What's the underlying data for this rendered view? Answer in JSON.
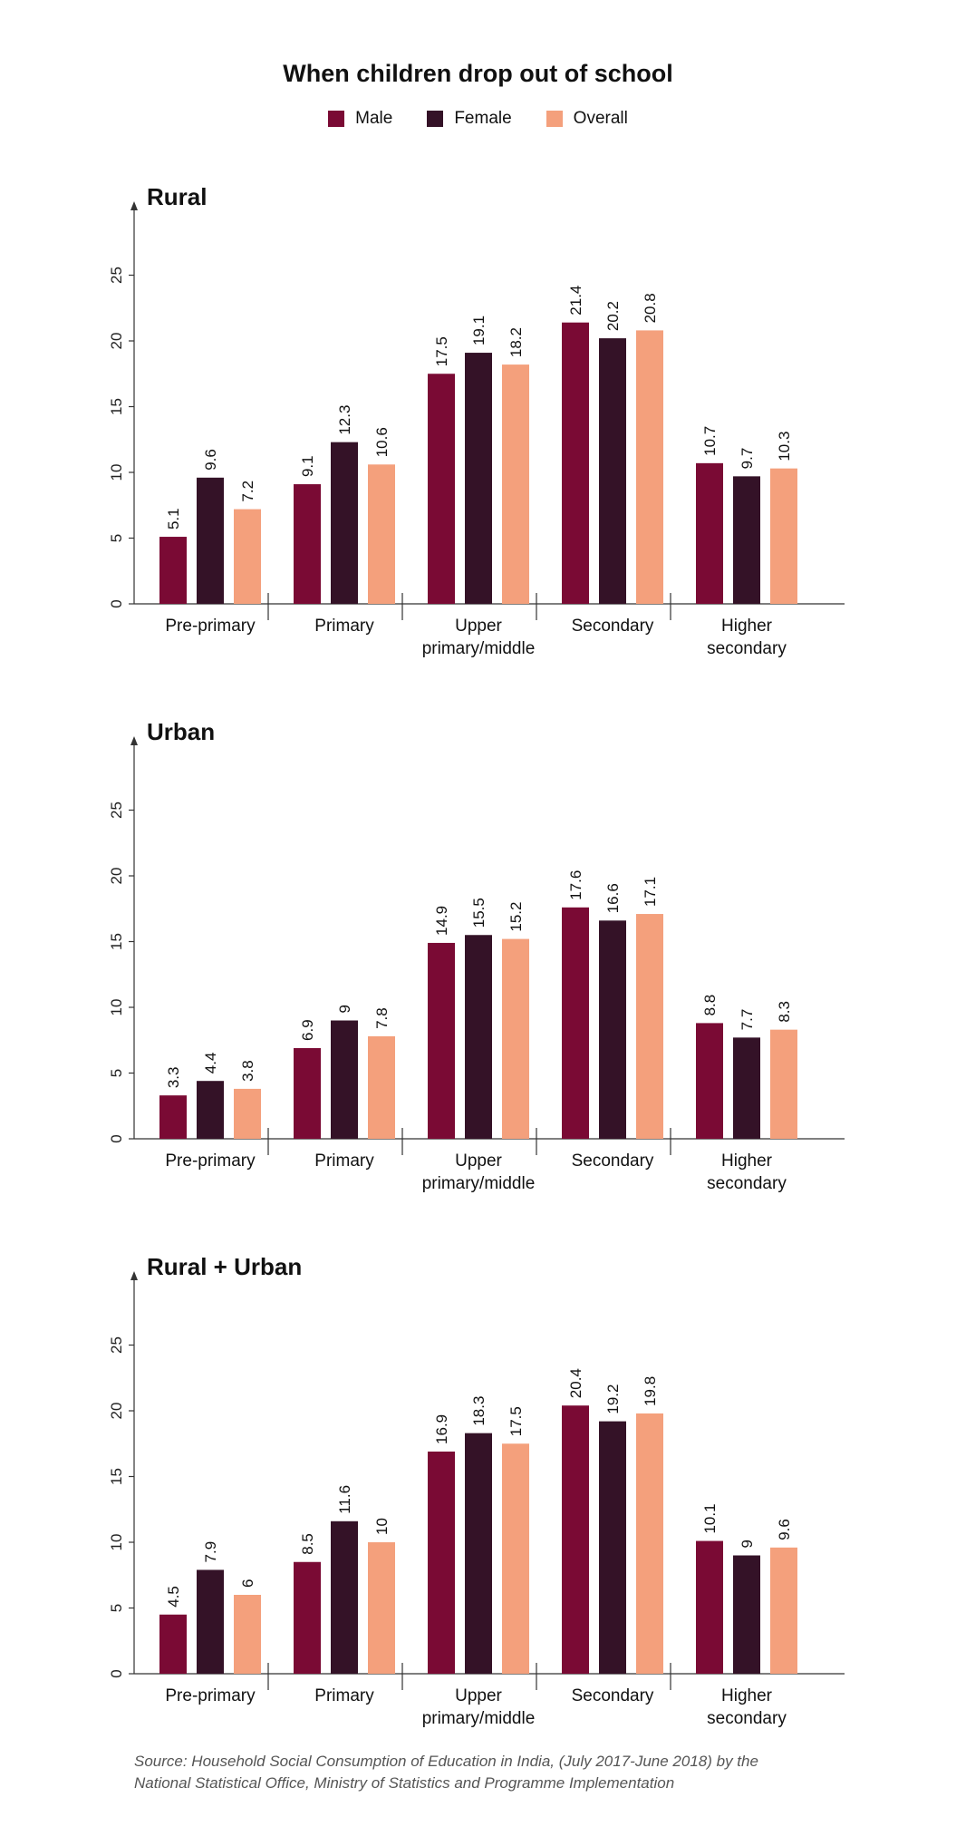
{
  "title": "When children drop out of school",
  "legend": [
    "Male",
    "Female",
    "Overall"
  ],
  "colors": [
    "#7a0a34",
    "#341227",
    "#f4a07c"
  ],
  "chart_data": [
    {
      "type": "bar",
      "title": "Rural",
      "categories": [
        [
          "Pre-primary"
        ],
        [
          "Primary"
        ],
        [
          "Upper",
          "primary/middle"
        ],
        [
          "Secondary"
        ],
        [
          "Higher",
          "secondary"
        ]
      ],
      "yticks": [
        "0",
        "5",
        "10",
        "15",
        "20",
        "25"
      ],
      "ylim": [
        0,
        29
      ],
      "series": [
        {
          "name": "Male",
          "values": [
            5.1,
            9.1,
            17.5,
            21.4,
            10.7
          ]
        },
        {
          "name": "Female",
          "values": [
            9.6,
            12.3,
            19.1,
            20.2,
            9.7
          ]
        },
        {
          "name": "Overall",
          "values": [
            7.2,
            10.6,
            18.2,
            20.8,
            10.3
          ]
        }
      ]
    },
    {
      "type": "bar",
      "title": "Urban",
      "categories": [
        [
          "Pre-primary"
        ],
        [
          "Primary"
        ],
        [
          "Upper",
          "primary/middle"
        ],
        [
          "Secondary"
        ],
        [
          "Higher",
          "secondary"
        ]
      ],
      "yticks": [
        "0",
        "5",
        "10",
        "15",
        "20",
        "25"
      ],
      "ylim": [
        0,
        29
      ],
      "series": [
        {
          "name": "Male",
          "values": [
            3.3,
            6.9,
            14.9,
            17.6,
            8.8
          ]
        },
        {
          "name": "Female",
          "values": [
            4.4,
            9,
            15.5,
            16.6,
            7.7
          ]
        },
        {
          "name": "Overall",
          "values": [
            3.8,
            7.8,
            15.2,
            17.1,
            8.3
          ]
        }
      ]
    },
    {
      "type": "bar",
      "title": "Rural + Urban",
      "categories": [
        [
          "Pre-primary"
        ],
        [
          "Primary"
        ],
        [
          "Upper",
          "primary/middle"
        ],
        [
          "Secondary"
        ],
        [
          "Higher",
          "secondary"
        ]
      ],
      "yticks": [
        "0",
        "5",
        "10",
        "15",
        "20",
        "25"
      ],
      "ylim": [
        0,
        29
      ],
      "series": [
        {
          "name": "Male",
          "values": [
            4.5,
            8.5,
            16.9,
            20.4,
            10.1
          ]
        },
        {
          "name": "Female",
          "values": [
            7.9,
            11.6,
            18.3,
            19.2,
            9
          ]
        },
        {
          "name": "Overall",
          "values": [
            6,
            10,
            17.5,
            19.8,
            9.6
          ]
        }
      ]
    }
  ],
  "source": [
    "Source: Household Social Consumption of Education in India, (July 2017-June 2018) by the",
    "National Statistical Office, Ministry of Statistics and Programme Implementation"
  ]
}
